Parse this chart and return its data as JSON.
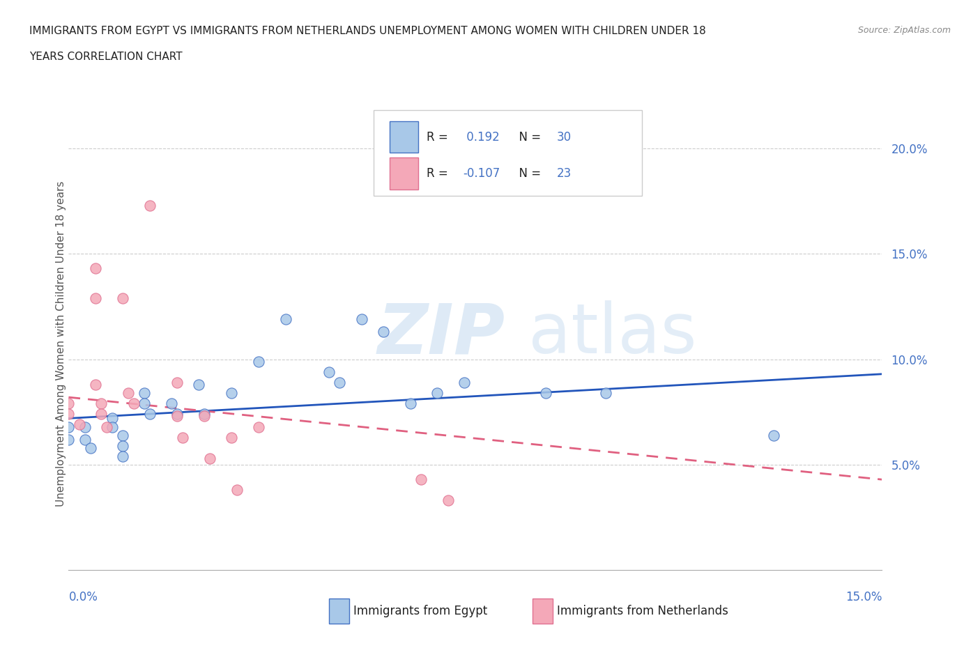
{
  "title_line1": "IMMIGRANTS FROM EGYPT VS IMMIGRANTS FROM NETHERLANDS UNEMPLOYMENT AMONG WOMEN WITH CHILDREN UNDER 18",
  "title_line2": "YEARS CORRELATION CHART",
  "source": "Source: ZipAtlas.com",
  "ylabel": "Unemployment Among Women with Children Under 18 years",
  "yticks": [
    0.05,
    0.1,
    0.15,
    0.2
  ],
  "ytick_labels": [
    "5.0%",
    "10.0%",
    "15.0%",
    "20.0%"
  ],
  "xlim": [
    0.0,
    0.15
  ],
  "ylim": [
    0.0,
    0.215
  ],
  "egypt_r": 0.192,
  "egypt_n": 30,
  "netherlands_r": -0.107,
  "netherlands_n": 23,
  "egypt_color": "#a8c8e8",
  "netherlands_color": "#f4a8b8",
  "egypt_edge_color": "#4472c4",
  "netherlands_edge_color": "#e07090",
  "egypt_line_color": "#2255bb",
  "netherlands_line_color": "#e06080",
  "tick_color": "#4472c4",
  "watermark_color": "#c8ddf0",
  "egypt_scatter": [
    [
      0.0,
      0.068
    ],
    [
      0.0,
      0.062
    ],
    [
      0.003,
      0.068
    ],
    [
      0.003,
      0.062
    ],
    [
      0.004,
      0.058
    ],
    [
      0.008,
      0.072
    ],
    [
      0.008,
      0.068
    ],
    [
      0.01,
      0.064
    ],
    [
      0.01,
      0.059
    ],
    [
      0.01,
      0.054
    ],
    [
      0.014,
      0.084
    ],
    [
      0.014,
      0.079
    ],
    [
      0.015,
      0.074
    ],
    [
      0.019,
      0.079
    ],
    [
      0.02,
      0.074
    ],
    [
      0.024,
      0.088
    ],
    [
      0.025,
      0.074
    ],
    [
      0.03,
      0.084
    ],
    [
      0.035,
      0.099
    ],
    [
      0.04,
      0.119
    ],
    [
      0.048,
      0.094
    ],
    [
      0.05,
      0.089
    ],
    [
      0.054,
      0.119
    ],
    [
      0.058,
      0.113
    ],
    [
      0.063,
      0.079
    ],
    [
      0.068,
      0.084
    ],
    [
      0.073,
      0.089
    ],
    [
      0.088,
      0.084
    ],
    [
      0.099,
      0.084
    ],
    [
      0.13,
      0.064
    ]
  ],
  "netherlands_scatter": [
    [
      0.0,
      0.079
    ],
    [
      0.0,
      0.074
    ],
    [
      0.002,
      0.069
    ],
    [
      0.005,
      0.143
    ],
    [
      0.005,
      0.129
    ],
    [
      0.005,
      0.088
    ],
    [
      0.006,
      0.079
    ],
    [
      0.006,
      0.074
    ],
    [
      0.007,
      0.068
    ],
    [
      0.01,
      0.129
    ],
    [
      0.011,
      0.084
    ],
    [
      0.012,
      0.079
    ],
    [
      0.015,
      0.173
    ],
    [
      0.02,
      0.089
    ],
    [
      0.02,
      0.073
    ],
    [
      0.021,
      0.063
    ],
    [
      0.025,
      0.073
    ],
    [
      0.026,
      0.053
    ],
    [
      0.03,
      0.063
    ],
    [
      0.031,
      0.038
    ],
    [
      0.035,
      0.068
    ],
    [
      0.065,
      0.043
    ],
    [
      0.07,
      0.033
    ]
  ],
  "egypt_trendline": [
    [
      0.0,
      0.072
    ],
    [
      0.15,
      0.093
    ]
  ],
  "netherlands_trendline": [
    [
      0.0,
      0.082
    ],
    [
      0.15,
      0.043
    ]
  ]
}
